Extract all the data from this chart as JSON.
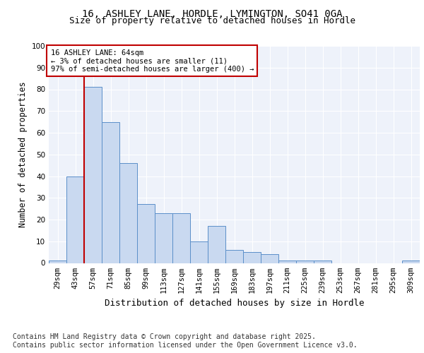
{
  "title1": "16, ASHLEY LANE, HORDLE, LYMINGTON, SO41 0GA",
  "title2": "Size of property relative to detached houses in Hordle",
  "xlabel": "Distribution of detached houses by size in Hordle",
  "ylabel": "Number of detached properties",
  "categories": [
    "29sqm",
    "43sqm",
    "57sqm",
    "71sqm",
    "85sqm",
    "99sqm",
    "113sqm",
    "127sqm",
    "141sqm",
    "155sqm",
    "169sqm",
    "183sqm",
    "197sqm",
    "211sqm",
    "225sqm",
    "239sqm",
    "253sqm",
    "267sqm",
    "281sqm",
    "295sqm",
    "309sqm"
  ],
  "values": [
    1,
    40,
    81,
    65,
    46,
    27,
    23,
    23,
    10,
    17,
    6,
    5,
    4,
    1,
    1,
    1,
    0,
    0,
    0,
    0,
    1
  ],
  "bar_color": "#c9d9f0",
  "bar_edge_color": "#5b8fc9",
  "vline_color": "#c00000",
  "vline_x": 1.5,
  "annotation_text": "16 ASHLEY LANE: 64sqm\n← 3% of detached houses are smaller (11)\n97% of semi-detached houses are larger (400) →",
  "annotation_box_color": "#ffffff",
  "annotation_box_edge": "#c00000",
  "ylim": [
    0,
    100
  ],
  "yticks": [
    0,
    10,
    20,
    30,
    40,
    50,
    60,
    70,
    80,
    90,
    100
  ],
  "footer": "Contains HM Land Registry data © Crown copyright and database right 2025.\nContains public sector information licensed under the Open Government Licence v3.0.",
  "background_color": "#eef2fa",
  "fig_background": "#ffffff",
  "grid_color": "#ffffff",
  "title_fontsize": 10,
  "subtitle_fontsize": 9,
  "axis_label_fontsize": 8.5,
  "tick_fontsize": 7.5,
  "footer_fontsize": 7,
  "annotation_fontsize": 7.5
}
